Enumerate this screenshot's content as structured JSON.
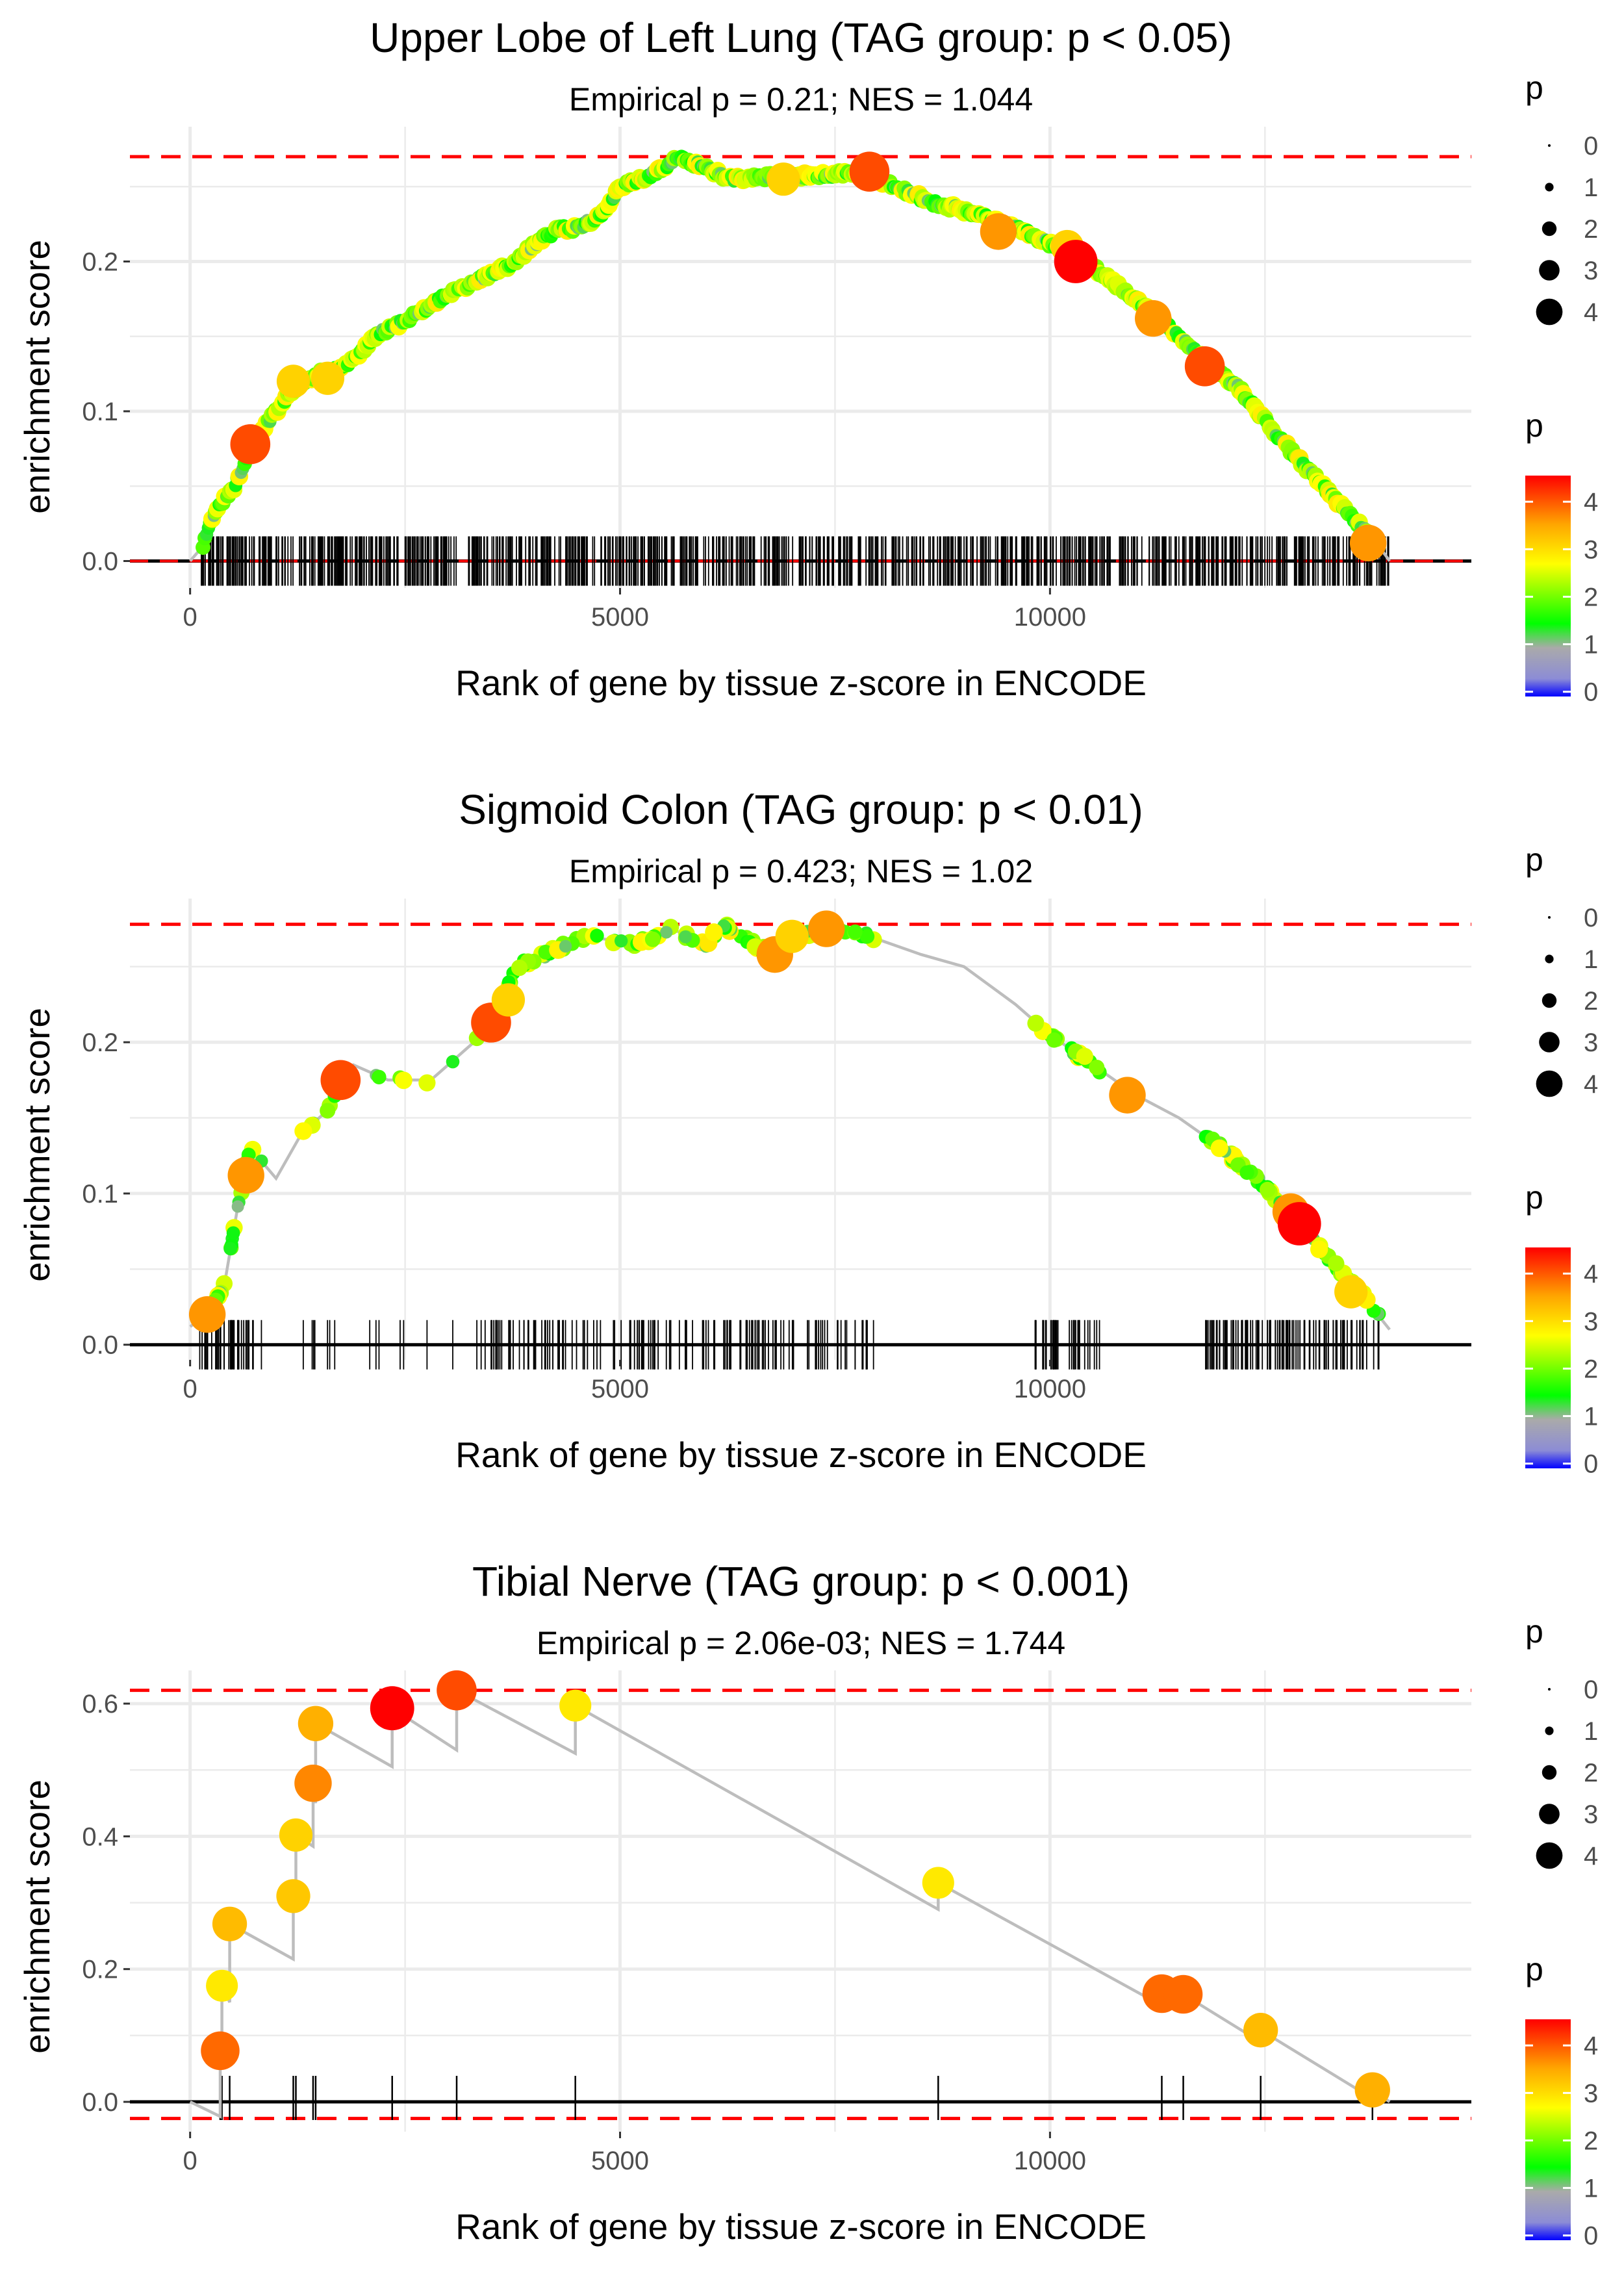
{
  "chart_data": [
    {
      "type": "line",
      "title": "Upper Lobe of Left Lung (TAG group: p < 0.05)",
      "subtitle": "Empirical p = 0.21; NES = 1.044",
      "xlabel": "Rank of gene by tissue z-score in ENCODE",
      "ylabel": "enrichment score",
      "xlim": [
        -700,
        14900
      ],
      "ylim": [
        -0.018,
        0.29
      ],
      "xticks": [
        0,
        5000,
        10000
      ],
      "xtick_labels": [
        "0",
        "5000",
        "10000"
      ],
      "yticks": [
        0,
        0.1,
        0.2
      ],
      "ytick_labels": [
        "0.0",
        "0.1",
        "0.2"
      ],
      "hlines": [
        0.27
      ],
      "max_rank": 13950,
      "curve": [
        [
          0,
          0
        ],
        [
          150,
          0.01
        ],
        [
          300,
          0.035
        ],
        [
          500,
          0.048
        ],
        [
          700,
          0.075
        ],
        [
          1000,
          0.1
        ],
        [
          1200,
          0.115
        ],
        [
          1500,
          0.125
        ],
        [
          1800,
          0.13
        ],
        [
          2200,
          0.152
        ],
        [
          2500,
          0.16
        ],
        [
          3000,
          0.178
        ],
        [
          3500,
          0.192
        ],
        [
          3800,
          0.2
        ],
        [
          4000,
          0.212
        ],
        [
          4300,
          0.222
        ],
        [
          4500,
          0.222
        ],
        [
          4800,
          0.232
        ],
        [
          5000,
          0.25
        ],
        [
          5300,
          0.256
        ],
        [
          5700,
          0.27
        ],
        [
          6000,
          0.262
        ],
        [
          6300,
          0.255
        ],
        [
          6800,
          0.257
        ],
        [
          7300,
          0.257
        ],
        [
          7800,
          0.26
        ],
        [
          8200,
          0.25
        ],
        [
          8600,
          0.24
        ],
        [
          9000,
          0.234
        ],
        [
          9500,
          0.225
        ],
        [
          10000,
          0.212
        ],
        [
          10300,
          0.205
        ],
        [
          10700,
          0.188
        ],
        [
          11200,
          0.165
        ],
        [
          11700,
          0.14
        ],
        [
          12200,
          0.115
        ],
        [
          12700,
          0.08
        ],
        [
          13100,
          0.055
        ],
        [
          13500,
          0.03
        ],
        [
          13800,
          0.012
        ],
        [
          13950,
          0
        ]
      ],
      "highlights": [
        [
          700,
          0.078,
          4
        ],
        [
          1200,
          0.12,
          3
        ],
        [
          1600,
          0.122,
          3
        ],
        [
          6900,
          0.255,
          3
        ],
        [
          7900,
          0.26,
          4
        ],
        [
          9400,
          0.22,
          3.5
        ],
        [
          10200,
          0.21,
          3
        ],
        [
          10300,
          0.2,
          4.5
        ],
        [
          11200,
          0.162,
          3.5
        ],
        [
          11800,
          0.13,
          4
        ],
        [
          13700,
          0.012,
          3.5
        ]
      ],
      "tick_mode": "dense"
    },
    {
      "type": "line",
      "title": "Sigmoid Colon (TAG group: p < 0.01)",
      "subtitle": "Empirical p = 0.423; NES = 1.02",
      "xlabel": "Rank of gene by tissue z-score in ENCODE",
      "ylabel": "enrichment score",
      "xlim": [
        -700,
        14900
      ],
      "ylim": [
        -0.01,
        0.295
      ],
      "xticks": [
        0,
        5000,
        10000
      ],
      "xtick_labels": [
        "0",
        "5000",
        "10000"
      ],
      "yticks": [
        0,
        0.1,
        0.2
      ],
      "ytick_labels": [
        "0.0",
        "0.1",
        "0.2"
      ],
      "hlines": [
        0.278
      ],
      "max_rank": 13950,
      "curve": [
        [
          0,
          0.012
        ],
        [
          200,
          0.02
        ],
        [
          400,
          0.04
        ],
        [
          550,
          0.09
        ],
        [
          700,
          0.13
        ],
        [
          1000,
          0.11
        ],
        [
          1300,
          0.14
        ],
        [
          1600,
          0.155
        ],
        [
          1900,
          0.185
        ],
        [
          2300,
          0.175
        ],
        [
          2800,
          0.175
        ],
        [
          3000,
          0.185
        ],
        [
          3300,
          0.2
        ],
        [
          3600,
          0.225
        ],
        [
          3800,
          0.25
        ],
        [
          4200,
          0.26
        ],
        [
          4600,
          0.27
        ],
        [
          5200,
          0.265
        ],
        [
          5600,
          0.275
        ],
        [
          6000,
          0.265
        ],
        [
          6200,
          0.278
        ],
        [
          6700,
          0.26
        ],
        [
          7000,
          0.27
        ],
        [
          7500,
          0.275
        ],
        [
          7900,
          0.27
        ],
        [
          8500,
          0.258
        ],
        [
          9000,
          0.25
        ],
        [
          9600,
          0.225
        ],
        [
          10000,
          0.205
        ],
        [
          10500,
          0.185
        ],
        [
          11000,
          0.165
        ],
        [
          11500,
          0.15
        ],
        [
          12000,
          0.13
        ],
        [
          12500,
          0.105
        ],
        [
          12900,
          0.08
        ],
        [
          13200,
          0.06
        ],
        [
          13600,
          0.035
        ],
        [
          13950,
          0.01
        ]
      ],
      "highlights": [
        [
          200,
          0.02,
          3.5
        ],
        [
          650,
          0.112,
          3.5
        ],
        [
          1750,
          0.175,
          4
        ],
        [
          3500,
          0.213,
          4
        ],
        [
          3700,
          0.228,
          3
        ],
        [
          6800,
          0.258,
          3.5
        ],
        [
          7000,
          0.27,
          3
        ],
        [
          7400,
          0.275,
          3.5
        ],
        [
          10900,
          0.165,
          3.5
        ],
        [
          12800,
          0.088,
          3.5
        ],
        [
          12900,
          0.08,
          4.5
        ],
        [
          13500,
          0.035,
          3
        ]
      ],
      "tick_mode": "medium"
    },
    {
      "type": "line",
      "title": "Tibial Nerve (TAG group: p < 0.001)",
      "subtitle": "Empirical p = 2.06e-03; NES = 1.744",
      "xlabel": "Rank of gene by tissue z-score in ENCODE",
      "ylabel": "enrichment score",
      "xlim": [
        -700,
        14900
      ],
      "ylim": [
        -0.045,
        0.65
      ],
      "xticks": [
        0,
        5000,
        10000
      ],
      "xtick_labels": [
        "0",
        "5000",
        "10000"
      ],
      "yticks": [
        0,
        0.2,
        0.4,
        0.6
      ],
      "ytick_labels": [
        "0.0",
        "0.2",
        "0.4",
        "0.6"
      ],
      "hlines": [
        0.62,
        -0.025
      ],
      "max_rank": 13950,
      "curve": [
        [
          0,
          0
        ],
        [
          350,
          -0.022
        ],
        [
          350,
          0.077
        ],
        [
          370,
          0.054
        ],
        [
          370,
          0.175
        ],
        [
          460,
          0.15
        ],
        [
          460,
          0.268
        ],
        [
          1200,
          0.215
        ],
        [
          1200,
          0.31
        ],
        [
          1230,
          0.285
        ],
        [
          1230,
          0.402
        ],
        [
          1430,
          0.385
        ],
        [
          1430,
          0.48
        ],
        [
          1460,
          0.45
        ],
        [
          1460,
          0.57
        ],
        [
          2350,
          0.505
        ],
        [
          2350,
          0.593
        ],
        [
          3100,
          0.53
        ],
        [
          3100,
          0.62
        ],
        [
          4480,
          0.525
        ],
        [
          4480,
          0.597
        ],
        [
          8700,
          0.29
        ],
        [
          8700,
          0.33
        ],
        [
          11300,
          0.145
        ],
        [
          11300,
          0.163
        ],
        [
          11550,
          0.145
        ],
        [
          11550,
          0.162
        ],
        [
          12450,
          0.09
        ],
        [
          12450,
          0.108
        ],
        [
          13750,
          0.005
        ],
        [
          13750,
          0.018
        ],
        [
          13950,
          0
        ]
      ],
      "highlights": [
        [
          350,
          0.077,
          3.8
        ],
        [
          370,
          0.175,
          2.8
        ],
        [
          460,
          0.268,
          3.2
        ],
        [
          1200,
          0.31,
          3.1
        ],
        [
          1230,
          0.402,
          3
        ],
        [
          1430,
          0.48,
          3.6
        ],
        [
          1460,
          0.57,
          3.3
        ],
        [
          2350,
          0.593,
          4.6
        ],
        [
          3100,
          0.62,
          4
        ],
        [
          4480,
          0.597,
          2.8
        ],
        [
          8700,
          0.33,
          2.8
        ],
        [
          11300,
          0.163,
          3.8
        ],
        [
          11550,
          0.162,
          3.8
        ],
        [
          12450,
          0.108,
          3.2
        ],
        [
          13750,
          0.018,
          3.3
        ]
      ],
      "ticks": [
        350,
        370,
        460,
        1200,
        1230,
        1430,
        1460,
        2350,
        3100,
        4480,
        8700,
        11300,
        11550,
        12450,
        13750
      ],
      "tick_mode": "explicit"
    }
  ],
  "legend": {
    "size_title": "p",
    "size_labels": [
      "0",
      "1",
      "2",
      "3",
      "4"
    ],
    "color_title": "p",
    "color_labels": [
      "0",
      "1",
      "2",
      "3",
      "4"
    ]
  },
  "colors": {
    "hline": "#ff0000",
    "curve": "#bdbdbd",
    "grid": "#ebebeb",
    "axis_text": "#4d4d4d"
  }
}
